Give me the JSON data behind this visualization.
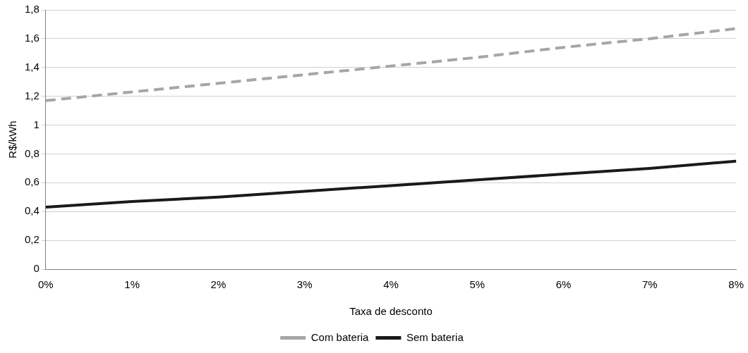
{
  "chart_data": {
    "type": "line",
    "xlabel": "Taxa de desconto",
    "ylabel": "R$/kWh",
    "categories": [
      "0%",
      "1%",
      "2%",
      "3%",
      "4%",
      "5%",
      "6%",
      "7%",
      "8%"
    ],
    "series": [
      {
        "name": "Com bateria",
        "color": "#a6a6a6",
        "line_style": "dashed",
        "values": [
          1.17,
          1.23,
          1.29,
          1.35,
          1.41,
          1.47,
          1.54,
          1.6,
          1.67
        ]
      },
      {
        "name": "Sem bateria",
        "color": "#1a1a1a",
        "line_style": "solid",
        "values": [
          0.43,
          0.47,
          0.5,
          0.54,
          0.58,
          0.62,
          0.66,
          0.7,
          0.75
        ]
      }
    ],
    "ylim": [
      0,
      1.8
    ],
    "yticks": [
      0,
      {
        "value": 0.2,
        "label": "0,2"
      },
      {
        "value": 0.4,
        "label": "0,4"
      },
      {
        "value": 0.6,
        "label": "0,6"
      },
      {
        "value": 0.8,
        "label": "0,8"
      },
      1,
      {
        "value": 1.2,
        "label": "1,2"
      },
      {
        "value": 1.4,
        "label": "1,4"
      },
      {
        "value": 1.6,
        "label": "1,6"
      },
      {
        "value": 1.8,
        "label": "1,8"
      }
    ],
    "grid": "y",
    "legend": "bottom",
    "marker": "none"
  }
}
